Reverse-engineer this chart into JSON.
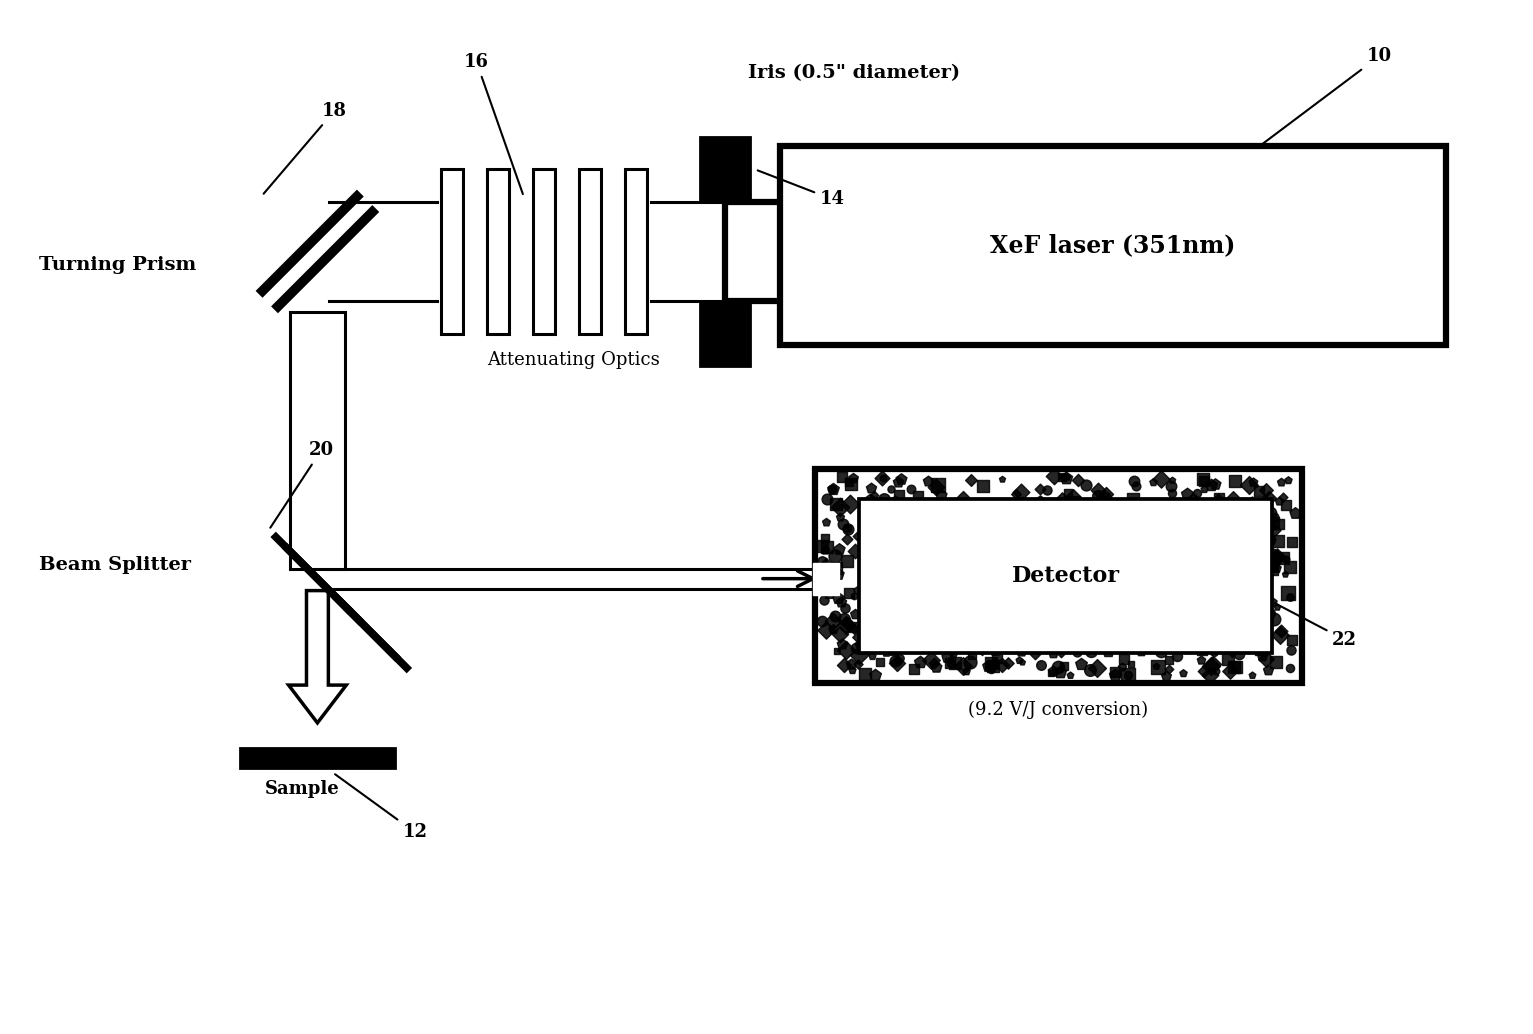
{
  "bg": "#ffffff",
  "lc": "#000000",
  "fig_w": 15.33,
  "fig_h": 10.34,
  "labels": {
    "laser": "XeF laser (351nm)",
    "iris": "Iris (0.5\" diameter)",
    "att": "Attenuating Optics",
    "prism": "Turning Prism",
    "splitter": "Beam Splitter",
    "sample": "Sample",
    "detector": "Detector",
    "conversion": "(9.2 V/J conversion)",
    "n10": "10",
    "n12": "12",
    "n14": "14",
    "n16": "16",
    "n18": "18",
    "n20": "20",
    "n22": "22"
  },
  "lw": 2.2,
  "thick": 4.5,
  "beam_lw": 2.2,
  "prism_lw": 7.0
}
